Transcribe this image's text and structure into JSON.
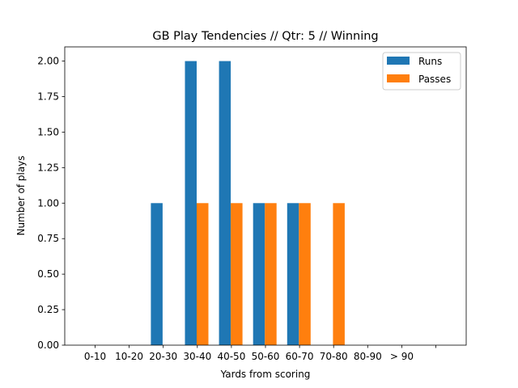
{
  "chart_data": {
    "type": "bar",
    "title": "GB Play Tendencies // Qtr: 5 // Winning",
    "xlabel": "Yards from scoring",
    "ylabel": "Number of plays",
    "categories": [
      "0-10",
      "10-20",
      "20-30",
      "30-40",
      "40-50",
      "50-60",
      "60-70",
      "70-80",
      "80-90",
      "> 90"
    ],
    "series": [
      {
        "name": "Runs",
        "color": "#1f77b4",
        "values": [
          0,
          0,
          1,
          2,
          2,
          1,
          1,
          0,
          0,
          0
        ]
      },
      {
        "name": "Passes",
        "color": "#ff7f0e",
        "values": [
          0,
          0,
          0,
          1,
          1,
          1,
          1,
          1,
          0,
          0
        ]
      }
    ],
    "ylim": [
      0,
      2.1
    ],
    "yticks": [
      "0.00",
      "0.25",
      "0.50",
      "0.75",
      "1.00",
      "1.25",
      "1.50",
      "1.75",
      "2.00"
    ],
    "grid": false,
    "legend_position": "top-right"
  }
}
